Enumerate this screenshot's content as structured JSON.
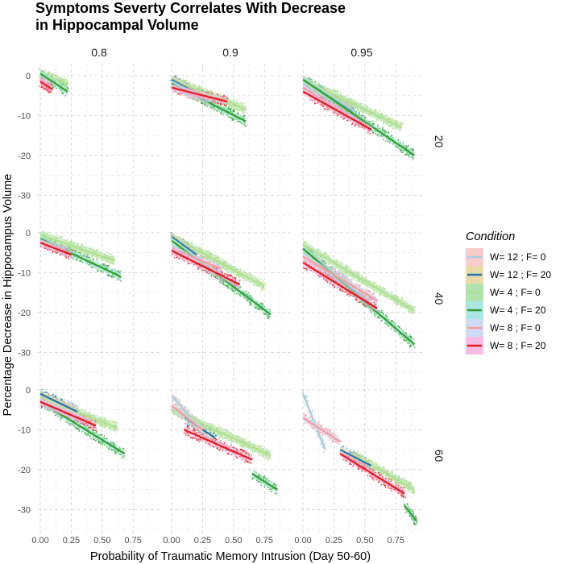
{
  "chart_data": {
    "type": "scatter",
    "title": "Symptoms Severty Correlates With Decrease\nin Hippocampal Volume",
    "xlabel": "Probability of Traumatic Memory Intrusion (Day 50-60)",
    "ylabel": "Percentage Decrease in Hippocampus Volume",
    "col_facets": [
      "0.8",
      "0.9",
      "0.95"
    ],
    "row_facets": [
      "20",
      "40",
      "60"
    ],
    "xlim": [
      -0.02,
      0.97
    ],
    "ylim": [
      -36,
      3
    ],
    "x_ticks": [
      0,
      0.25,
      0.5,
      0.75
    ],
    "x_tick_labels": [
      "0.00",
      "0.25",
      "0.50",
      "0.75"
    ],
    "y_ticks": [
      0,
      -10,
      -20,
      -30
    ],
    "y_tick_labels": [
      "0",
      "-10",
      "-20",
      "-30"
    ],
    "grid": true,
    "legend": {
      "title": "Condition",
      "position": "right",
      "entries": [
        {
          "label": "W= 12 ; F= 0",
          "color": "#a6cee3"
        },
        {
          "label": "W= 12 ; F= 20",
          "color": "#1f78b4"
        },
        {
          "label": "W= 4 ; F= 0",
          "color": "#b2df8a"
        },
        {
          "label": "W= 4 ; F= 20",
          "color": "#33a02c"
        },
        {
          "label": "W= 8 ; F= 0",
          "color": "#fb9a99"
        },
        {
          "label": "W= 8 ; F= 20",
          "color": "#e31a1c"
        }
      ]
    },
    "panels": [
      {
        "row": "20",
        "col": "0.8",
        "series": [
          {
            "condition": "W= 4 ; F= 20",
            "x": [
              0.0,
              0.22
            ],
            "y": [
              0.5,
              -4
            ]
          },
          {
            "condition": "W= 4 ; F= 0",
            "x": [
              0.0,
              0.22
            ],
            "y": [
              0.5,
              -2
            ]
          },
          {
            "condition": "W= 8 ; F= 0",
            "x": [
              0.0,
              0.08
            ],
            "y": [
              -1,
              -2.5
            ]
          },
          {
            "condition": "W= 8 ; F= 20",
            "x": [
              0.0,
              0.1
            ],
            "y": [
              -1.5,
              -3.5
            ]
          }
        ]
      },
      {
        "row": "20",
        "col": "0.9",
        "series": [
          {
            "condition": "W= 4 ; F= 0",
            "x": [
              0.0,
              0.6
            ],
            "y": [
              -1,
              -8.5
            ]
          },
          {
            "condition": "W= 4 ; F= 20",
            "x": [
              0.0,
              0.6
            ],
            "y": [
              -2,
              -11.5
            ]
          },
          {
            "condition": "W= 12 ; F= 0",
            "x": [
              0.0,
              0.15
            ],
            "y": [
              -1,
              -3
            ]
          },
          {
            "condition": "W= 12 ; F= 20",
            "x": [
              0.0,
              0.15
            ],
            "y": [
              -1,
              -3.5
            ]
          },
          {
            "condition": "W= 8 ; F= 0",
            "x": [
              0.0,
              0.3
            ],
            "y": [
              -3,
              -6
            ]
          },
          {
            "condition": "W= 8 ; F= 20",
            "x": [
              0.0,
              0.45
            ],
            "y": [
              -3,
              -6.5
            ]
          }
        ]
      },
      {
        "row": "20",
        "col": "0.95",
        "series": [
          {
            "condition": "W= 4 ; F= 0",
            "x": [
              0.0,
              0.8
            ],
            "y": [
              -1,
              -13
            ]
          },
          {
            "condition": "W= 4 ; F= 20",
            "x": [
              0.0,
              0.9
            ],
            "y": [
              -1,
              -20
            ]
          },
          {
            "condition": "W= 12 ; F= 0",
            "x": [
              0.0,
              0.4
            ],
            "y": [
              -2,
              -8
            ]
          },
          {
            "condition": "W= 12 ; F= 20",
            "x": [
              0.0,
              0.4
            ],
            "y": [
              -1,
              -9
            ]
          },
          {
            "condition": "W= 8 ; F= 0",
            "x": [
              0.0,
              0.45
            ],
            "y": [
              -3,
              -12
            ]
          },
          {
            "condition": "W= 8 ; F= 20",
            "x": [
              0.0,
              0.55
            ],
            "y": [
              -4,
              -13.5
            ]
          }
        ]
      },
      {
        "row": "40",
        "col": "0.8",
        "series": [
          {
            "condition": "W= 4 ; F= 0",
            "x": [
              0.0,
              0.6
            ],
            "y": [
              -0.5,
              -7
            ]
          },
          {
            "condition": "W= 4 ; F= 20",
            "x": [
              0.0,
              0.65
            ],
            "y": [
              -1.5,
              -11
            ]
          },
          {
            "condition": "W= 8 ; F= 0",
            "x": [
              0.0,
              0.2
            ],
            "y": [
              -2.5,
              -4.5
            ]
          },
          {
            "condition": "W= 8 ; F= 20",
            "x": [
              0.0,
              0.25
            ],
            "y": [
              -2.5,
              -5.5
            ]
          }
        ]
      },
      {
        "row": "40",
        "col": "0.9",
        "series": [
          {
            "condition": "W= 4 ; F= 0",
            "x": [
              0.0,
              0.75
            ],
            "y": [
              -1,
              -13.5
            ]
          },
          {
            "condition": "W= 4 ; F= 20",
            "x": [
              0.0,
              0.8
            ],
            "y": [
              -2,
              -20.5
            ]
          },
          {
            "condition": "W= 12 ; F= 0",
            "x": [
              0.0,
              0.2
            ],
            "y": [
              -1,
              -5
            ]
          },
          {
            "condition": "W= 12 ; F= 20",
            "x": [
              0.0,
              0.2
            ],
            "y": [
              -1,
              -5.5
            ]
          },
          {
            "condition": "W= 8 ; F= 0",
            "x": [
              0.0,
              0.4
            ],
            "y": [
              -4,
              -9
            ]
          },
          {
            "condition": "W= 8 ; F= 20",
            "x": [
              0.0,
              0.55
            ],
            "y": [
              -4.5,
              -13
            ]
          }
        ]
      },
      {
        "row": "40",
        "col": "0.95",
        "series": [
          {
            "condition": "W= 4 ; F= 0",
            "x": [
              0.0,
              0.9
            ],
            "y": [
              -3,
              -19.5
            ]
          },
          {
            "condition": "W= 4 ; F= 20",
            "x": [
              0.0,
              0.9
            ],
            "y": [
              -4,
              -28
            ]
          },
          {
            "condition": "W= 12 ; F= 0",
            "x": [
              0.0,
              0.4
            ],
            "y": [
              -5,
              -13
            ]
          },
          {
            "condition": "W= 12 ; F= 20",
            "x": [
              0.0,
              0.55
            ],
            "y": [
              -4,
              -18
            ]
          },
          {
            "condition": "W= 8 ; F= 0",
            "x": [
              0.0,
              0.6
            ],
            "y": [
              -6,
              -17
            ]
          },
          {
            "condition": "W= 8 ; F= 20",
            "x": [
              0.0,
              0.6
            ],
            "y": [
              -7.5,
              -19
            ]
          }
        ]
      },
      {
        "row": "60",
        "col": "0.8",
        "series": [
          {
            "condition": "W= 4 ; F= 0",
            "x": [
              0.0,
              0.62
            ],
            "y": [
              -2,
              -9.5
            ]
          },
          {
            "condition": "W= 4 ; F= 20",
            "x": [
              0.0,
              0.68
            ],
            "y": [
              -3,
              -16
            ]
          },
          {
            "condition": "W= 12 ; F= 0",
            "x": [
              0.0,
              0.3
            ],
            "y": [
              -1.5,
              -5
            ]
          },
          {
            "condition": "W= 12 ; F= 20",
            "x": [
              0.0,
              0.3
            ],
            "y": [
              -1,
              -5.5
            ]
          },
          {
            "condition": "W= 8 ; F= 0",
            "x": [
              0.0,
              0.35
            ],
            "y": [
              -3,
              -7.5
            ]
          },
          {
            "condition": "W= 8 ; F= 20",
            "x": [
              0.0,
              0.45
            ],
            "y": [
              -3,
              -9
            ]
          }
        ]
      },
      {
        "row": "60",
        "col": "0.9",
        "series": [
          {
            "condition": "W= 4 ; F= 0",
            "x": [
              0.0,
              0.8
            ],
            "y": [
              -5,
              -16.5
            ]
          },
          {
            "condition": "W= 4 ; F= 20",
            "x": [
              0.65,
              0.85
            ],
            "y": [
              -21,
              -25
            ]
          },
          {
            "condition": "W= 12 ; F= 0",
            "x": [
              0.0,
              0.3
            ],
            "y": [
              -1.5,
              -12
            ]
          },
          {
            "condition": "W= 12 ; F= 20",
            "x": [
              0.1,
              0.35
            ],
            "y": [
              -7,
              -12
            ]
          },
          {
            "condition": "W= 8 ; F= 0",
            "x": [
              0.0,
              0.25
            ],
            "y": [
              -4,
              -10
            ]
          },
          {
            "condition": "W= 8 ; F= 20",
            "x": [
              0.1,
              0.65
            ],
            "y": [
              -10,
              -17.5
            ]
          }
        ]
      },
      {
        "row": "60",
        "col": "0.95",
        "series": [
          {
            "condition": "W= 4 ; F= 0",
            "x": [
              0.4,
              0.9
            ],
            "y": [
              -16,
              -25
            ]
          },
          {
            "condition": "W= 4 ; F= 20",
            "x": [
              0.82,
              0.92
            ],
            "y": [
              -29,
              -33
            ]
          },
          {
            "condition": "W= 12 ; F= 0",
            "x": [
              0.0,
              0.18
            ],
            "y": [
              -1,
              -15
            ]
          },
          {
            "condition": "W= 12 ; F= 20",
            "x": [
              0.3,
              0.55
            ],
            "y": [
              -15,
              -19
            ]
          },
          {
            "condition": "W= 8 ; F= 0",
            "x": [
              0.0,
              0.3
            ],
            "y": [
              -7,
              -13
            ]
          },
          {
            "condition": "W= 8 ; F= 20",
            "x": [
              0.3,
              0.82
            ],
            "y": [
              -16,
              -26
            ]
          }
        ]
      }
    ]
  }
}
